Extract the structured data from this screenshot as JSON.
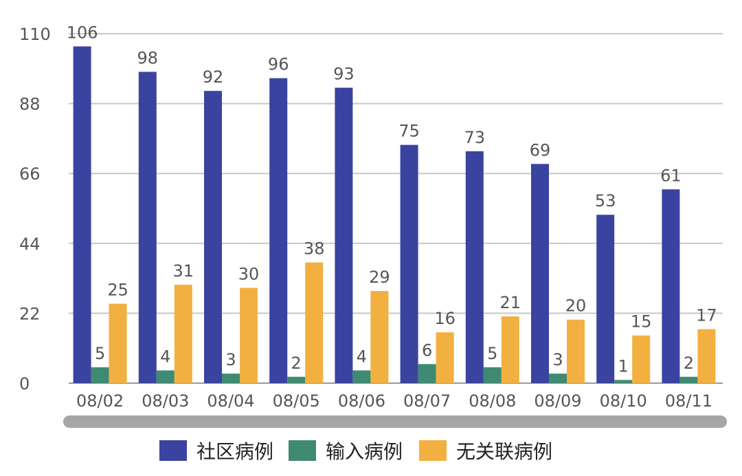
{
  "chart_data": {
    "type": "bar",
    "categories": [
      "08/02",
      "08/03",
      "08/04",
      "08/05",
      "08/06",
      "08/07",
      "08/08",
      "08/09",
      "08/10",
      "08/11"
    ],
    "series": [
      {
        "name": "社区病例",
        "color": "#3b43a0",
        "values": [
          106,
          98,
          92,
          96,
          93,
          75,
          73,
          69,
          53,
          61
        ]
      },
      {
        "name": "输入病例",
        "color": "#3f8a72",
        "values": [
          5,
          4,
          3,
          2,
          4,
          6,
          5,
          3,
          1,
          2
        ]
      },
      {
        "name": "无关联病例",
        "color": "#f2b041",
        "values": [
          25,
          31,
          30,
          38,
          29,
          16,
          21,
          20,
          15,
          17
        ]
      }
    ],
    "y_ticks": [
      "0",
      "22",
      "44",
      "66",
      "88",
      "110"
    ],
    "ylim": [
      0,
      110
    ],
    "grid": true,
    "legend_position": "bottom-center",
    "title": "",
    "xlabel": "",
    "ylabel": ""
  }
}
